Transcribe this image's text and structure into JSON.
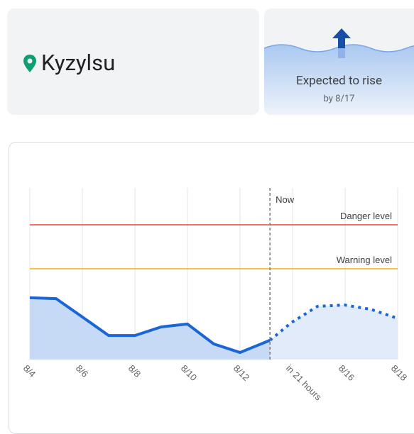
{
  "location": {
    "name": "Kyzylsu"
  },
  "forecast_card": {
    "title": "Expected to rise",
    "subtitle": "by 8/17"
  },
  "chart_data": {
    "type": "line",
    "xlim": [
      4,
      18
    ],
    "ylim": [
      0,
      100
    ],
    "xticks": [
      {
        "value": 4,
        "label": "8/4"
      },
      {
        "value": 6,
        "label": "8/6"
      },
      {
        "value": 8,
        "label": "8/8"
      },
      {
        "value": 10,
        "label": "8/10"
      },
      {
        "value": 12,
        "label": "8/12"
      },
      {
        "value": 14,
        "label": "in 21 hours"
      },
      {
        "value": 16,
        "label": "8/16"
      },
      {
        "value": 18,
        "label": "8/18"
      }
    ],
    "grid": true,
    "now": {
      "label": "Now",
      "x": 13.14
    },
    "thresholds": [
      {
        "label": "Danger level",
        "value": 78.5,
        "color": "#e8453c"
      },
      {
        "label": "Warning level",
        "value": 52.9,
        "color": "#f2b000"
      }
    ],
    "series": [
      {
        "style": "solid",
        "color": "#1a66d6",
        "fill": "#c6daf6",
        "x": [
          4,
          5,
          6,
          7,
          8,
          9,
          10,
          11,
          12,
          13.14
        ],
        "values": [
          36,
          35.5,
          24.8,
          14,
          14,
          19,
          20.7,
          9.1,
          4.1,
          11.2
        ]
      },
      {
        "style": "dotted",
        "color": "#1a66d6",
        "fill": "#e1ebfa",
        "x": [
          13.14,
          13.95,
          14.95,
          15.97,
          16.97,
          18
        ],
        "values": [
          11.2,
          21.5,
          31,
          31.8,
          29.3,
          24
        ]
      }
    ]
  }
}
